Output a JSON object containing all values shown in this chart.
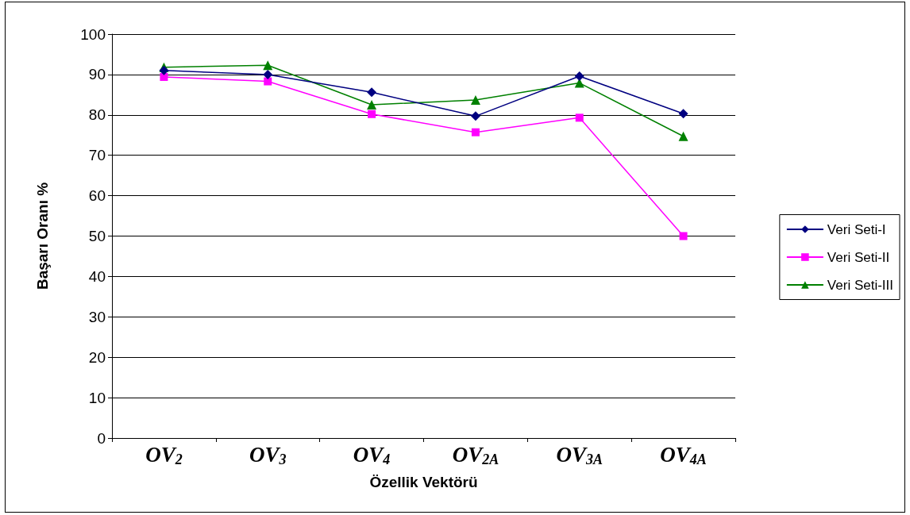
{
  "chart_data": {
    "type": "line",
    "xlabel": "Özellik Vektörü",
    "ylabel": "Başarı Oranı %",
    "categories": [
      "OV$_{2}$",
      "OV$_{3}$",
      "OV$_{4}$",
      "OV$_{2A}$",
      "OV$_{3A}$",
      "OV$_{4A}$"
    ],
    "series": [
      {
        "name": "Veri Seti-I",
        "color": "#000080",
        "marker": "diamond",
        "values": [
          91.0,
          90.0,
          85.6,
          79.7,
          89.6,
          80.3
        ]
      },
      {
        "name": "Veri Seti-II",
        "color": "#ff00ff",
        "marker": "square",
        "values": [
          89.4,
          88.3,
          80.2,
          75.7,
          79.3,
          50.0
        ]
      },
      {
        "name": "Veri Seti-III",
        "color": "#008000",
        "marker": "triangle",
        "values": [
          91.8,
          92.3,
          82.5,
          83.7,
          87.9,
          74.7
        ]
      }
    ],
    "ylim": [
      0,
      100
    ],
    "yticks": [
      0,
      10,
      20,
      30,
      40,
      50,
      60,
      70,
      80,
      90,
      100
    ],
    "grid": "y",
    "legend": "right",
    "line_style": "solid"
  }
}
